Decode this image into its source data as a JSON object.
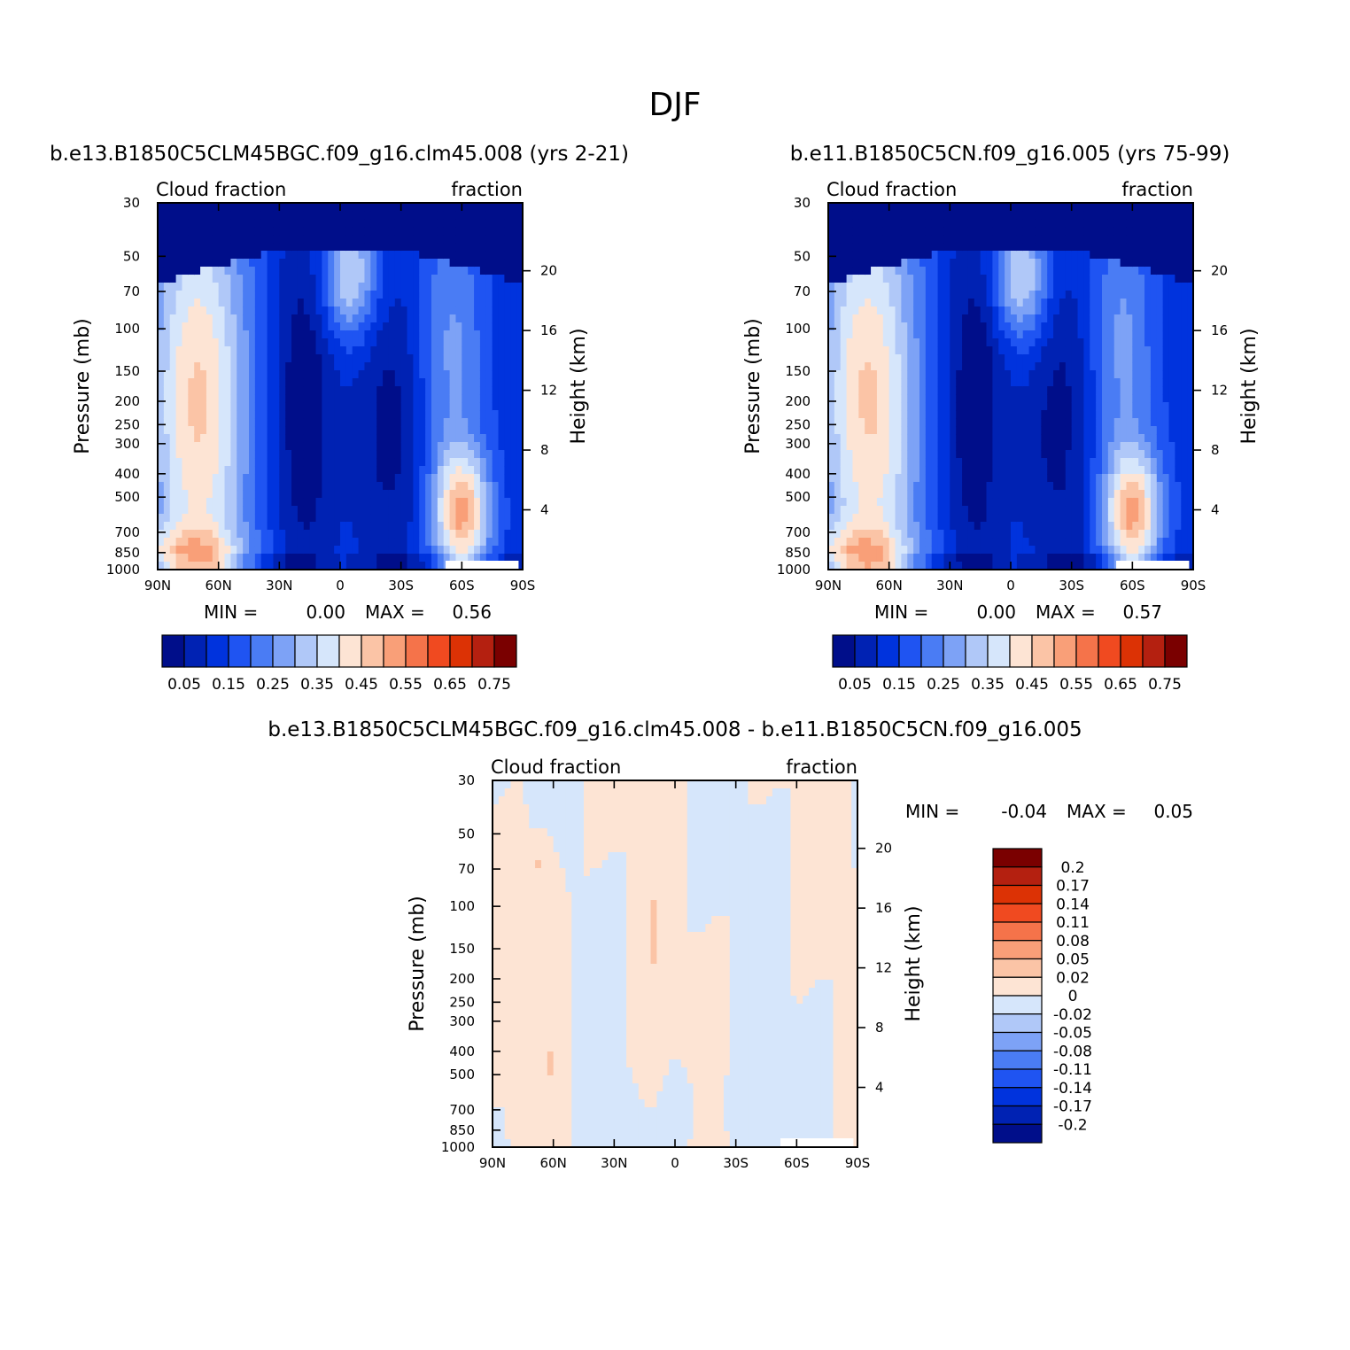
{
  "figure_title": "DJF",
  "colors": {
    "fraction_palette": [
      "#000e8a",
      "#0022b3",
      "#0033dd",
      "#1f54f2",
      "#4a7cf4",
      "#7da2f6",
      "#b0c8f8",
      "#d6e6fb",
      "#fde4d4",
      "#fbc4a6",
      "#f99f78",
      "#f5734a",
      "#f04a20",
      "#dc3205",
      "#b42010",
      "#7a0000"
    ],
    "diff_palette": [
      "#000e8a",
      "#0022b3",
      "#0033dd",
      "#1f54f2",
      "#4a7cf4",
      "#7da2f6",
      "#b0c8f8",
      "#d6e6fb",
      "#fde4d4",
      "#fbc4a6",
      "#f99f78",
      "#f5734a",
      "#f04a20",
      "#dc3205",
      "#b42010",
      "#7a0000"
    ]
  },
  "chart_data": [
    {
      "type": "heatmap",
      "id": "panel-a",
      "title": "b.e13.B1850C5CLM45BGC.f09_g16.clm45.008 (yrs 2-21)",
      "left_string": "Cloud fraction",
      "right_string": "fraction",
      "xlabel": "",
      "ylabel": "Pressure (mb)",
      "y2label": "Height (km)",
      "x_ticks": [
        "90N",
        "60N",
        "30N",
        "0",
        "30S",
        "60S",
        "90S"
      ],
      "x_tick_values": [
        90,
        60,
        30,
        0,
        -30,
        -60,
        -90
      ],
      "xlim": [
        90,
        -90
      ],
      "y_ticks": [
        "30",
        "50",
        "70",
        "100",
        "150",
        "200",
        "250",
        "300",
        "400",
        "500",
        "700",
        "850",
        "1000"
      ],
      "y_tick_values": [
        30,
        50,
        70,
        100,
        150,
        200,
        250,
        300,
        400,
        500,
        700,
        850,
        1000
      ],
      "ylim": [
        1000,
        30
      ],
      "y2_ticks": [
        "20",
        "16",
        "12",
        "8",
        "4"
      ],
      "y2_tick_values": [
        20,
        16,
        12,
        8,
        4
      ],
      "min_label": "MIN =",
      "min_value": "0.00",
      "max_label": "MAX =",
      "max_value": "0.56",
      "min": 0.0,
      "max": 0.56,
      "colorbar_labels": [
        "0.05",
        "0.15",
        "0.25",
        "0.35",
        "0.45",
        "0.55",
        "0.65",
        "0.75"
      ],
      "contour_levels": [
        0.05,
        0.1,
        0.15,
        0.2,
        0.25,
        0.3,
        0.35,
        0.4,
        0.45,
        0.5,
        0.55,
        0.6,
        0.65,
        0.7,
        0.75
      ]
    },
    {
      "type": "heatmap",
      "id": "panel-b",
      "title": "b.e11.B1850C5CN.f09_g16.005 (yrs 75-99)",
      "left_string": "Cloud fraction",
      "right_string": "fraction",
      "xlabel": "",
      "ylabel": "Pressure (mb)",
      "y2label": "Height (km)",
      "x_ticks": [
        "90N",
        "60N",
        "30N",
        "0",
        "30S",
        "60S",
        "90S"
      ],
      "x_tick_values": [
        90,
        60,
        30,
        0,
        -30,
        -60,
        -90
      ],
      "xlim": [
        90,
        -90
      ],
      "y_ticks": [
        "30",
        "50",
        "70",
        "100",
        "150",
        "200",
        "250",
        "300",
        "400",
        "500",
        "700",
        "850",
        "1000"
      ],
      "y_tick_values": [
        30,
        50,
        70,
        100,
        150,
        200,
        250,
        300,
        400,
        500,
        700,
        850,
        1000
      ],
      "ylim": [
        1000,
        30
      ],
      "y2_ticks": [
        "20",
        "16",
        "12",
        "8",
        "4"
      ],
      "y2_tick_values": [
        20,
        16,
        12,
        8,
        4
      ],
      "min_label": "MIN =",
      "min_value": "0.00",
      "max_label": "MAX =",
      "max_value": "0.57",
      "min": 0.0,
      "max": 0.57,
      "colorbar_labels": [
        "0.05",
        "0.15",
        "0.25",
        "0.35",
        "0.45",
        "0.55",
        "0.65",
        "0.75"
      ],
      "contour_levels": [
        0.05,
        0.1,
        0.15,
        0.2,
        0.25,
        0.3,
        0.35,
        0.4,
        0.45,
        0.5,
        0.55,
        0.6,
        0.65,
        0.7,
        0.75
      ]
    },
    {
      "type": "heatmap",
      "id": "panel-diff",
      "title": "b.e13.B1850C5CLM45BGC.f09_g16.clm45.008 - b.e11.B1850C5CN.f09_g16.005",
      "left_string": "Cloud fraction",
      "right_string": "fraction",
      "xlabel": "",
      "ylabel": "Pressure (mb)",
      "y2label": "Height (km)",
      "x_ticks": [
        "90N",
        "60N",
        "30N",
        "0",
        "30S",
        "60S",
        "90S"
      ],
      "x_tick_values": [
        90,
        60,
        30,
        0,
        -30,
        -60,
        -90
      ],
      "xlim": [
        90,
        -90
      ],
      "y_ticks": [
        "30",
        "50",
        "70",
        "100",
        "150",
        "200",
        "250",
        "300",
        "400",
        "500",
        "700",
        "850",
        "1000"
      ],
      "y_tick_values": [
        30,
        50,
        70,
        100,
        150,
        200,
        250,
        300,
        400,
        500,
        700,
        850,
        1000
      ],
      "ylim": [
        1000,
        30
      ],
      "y2_ticks": [
        "20",
        "16",
        "12",
        "8",
        "4"
      ],
      "y2_tick_values": [
        20,
        16,
        12,
        8,
        4
      ],
      "min_label": "MIN =",
      "min_value": "-0.04",
      "max_label": "MAX =",
      "max_value": "0.05",
      "min": -0.04,
      "max": 0.05,
      "colorbar_labels": [
        "0.2",
        "0.17",
        "0.14",
        "0.11",
        "0.08",
        "0.05",
        "0.02",
        "0",
        "-0.02",
        "-0.05",
        "-0.08",
        "-0.11",
        "-0.14",
        "-0.17",
        "-0.2"
      ],
      "contour_levels": [
        -0.2,
        -0.17,
        -0.14,
        -0.11,
        -0.08,
        -0.05,
        -0.02,
        0,
        0.02,
        0.05,
        0.08,
        0.11,
        0.14,
        0.17,
        0.2
      ]
    }
  ]
}
